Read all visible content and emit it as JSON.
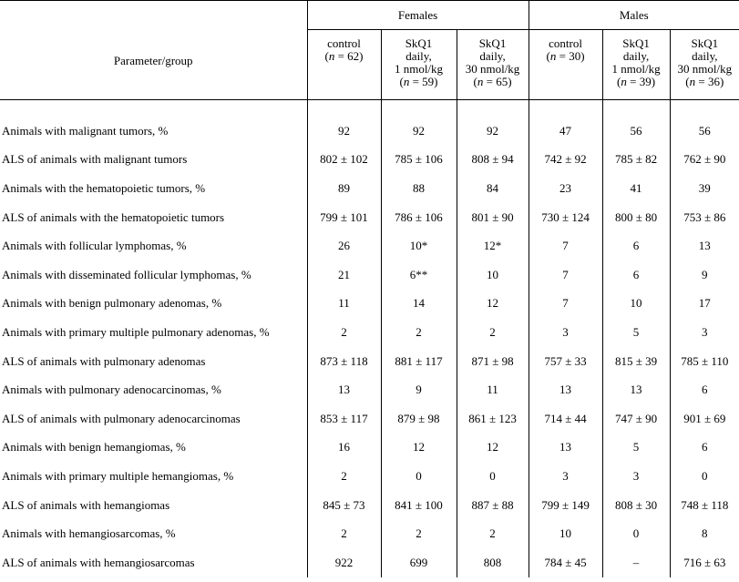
{
  "header": {
    "param_label": "Parameter/group",
    "groups": [
      "Females",
      "Males"
    ],
    "columns": [
      {
        "l1": "control",
        "l2": "",
        "l3": "",
        "n": "62"
      },
      {
        "l1": "SkQ1",
        "l2": "daily,",
        "l3": "1 nmol/kg",
        "n": "59"
      },
      {
        "l1": "SkQ1",
        "l2": "daily,",
        "l3": "30 nmol/kg",
        "n": "65"
      },
      {
        "l1": "control",
        "l2": "",
        "l3": "",
        "n": "30"
      },
      {
        "l1": "SkQ1",
        "l2": "daily,",
        "l3": "1 nmol/kg",
        "n": "39"
      },
      {
        "l1": "SkQ1",
        "l2": "daily,",
        "l3": "30 nmol/kg",
        "n": "36"
      }
    ]
  },
  "rows": [
    {
      "label": "Animals with malignant tumors, %",
      "values": [
        "92",
        "92",
        "92",
        "47",
        "56",
        "56"
      ]
    },
    {
      "label": "ALS of animals with malignant tumors",
      "values": [
        "802 ± 102",
        "785 ± 106",
        "808 ± 94",
        "742 ± 92",
        "785 ± 82",
        "762 ± 90"
      ]
    },
    {
      "label": "Animals with the hematopoietic tumors, %",
      "values": [
        "89",
        "88",
        "84",
        "23",
        "41",
        "39"
      ]
    },
    {
      "label": "ALS of animals with the hematopoietic tumors",
      "values": [
        "799 ± 101",
        "786 ± 106",
        "801 ± 90",
        "730 ± 124",
        "800 ± 80",
        "753 ± 86"
      ]
    },
    {
      "label": "Animals with follicular lymphomas, %",
      "values": [
        "26",
        "10*",
        "12*",
        "7",
        "6",
        "13"
      ]
    },
    {
      "label": "Animals with disseminated follicular lymphomas, %",
      "values": [
        "21",
        "6**",
        "10",
        "7",
        "6",
        "9"
      ]
    },
    {
      "label": "Animals with benign pulmonary adenomas, %",
      "values": [
        "11",
        "14",
        "12",
        "7",
        "10",
        "17"
      ]
    },
    {
      "label": "Animals with primary multiple pulmonary adenomas, %",
      "values": [
        "2",
        "2",
        "2",
        "3",
        "5",
        "3"
      ]
    },
    {
      "label": "ALS of animals with pulmonary adenomas",
      "values": [
        "873 ± 118",
        "881 ± 117",
        "871 ± 98",
        "757 ± 33",
        "815 ± 39",
        "785 ± 110"
      ]
    },
    {
      "label": "Animals with pulmonary adenocarcinomas, %",
      "values": [
        "13",
        "9",
        "11",
        "13",
        "13",
        "6"
      ]
    },
    {
      "label": "ALS of animals with pulmonary adenocarcinomas",
      "values": [
        "853 ± 117",
        "879 ± 98",
        "861 ± 123",
        "714 ± 44",
        "747 ± 90",
        "901 ± 69"
      ]
    },
    {
      "label": "Animals with benign hemangiomas, %",
      "values": [
        "16",
        "12",
        "12",
        "13",
        "5",
        "6"
      ]
    },
    {
      "label": "Animals with primary multiple hemangiomas, %",
      "values": [
        "2",
        "0",
        "0",
        "3",
        "3",
        "0"
      ]
    },
    {
      "label": "ALS of animals with hemangiomas",
      "values": [
        "845 ± 73",
        "841 ± 100",
        "887 ± 88",
        "799 ± 149",
        "808 ± 30",
        "748 ± 118"
      ]
    },
    {
      "label": "Animals with hemangiosarcomas, %",
      "values": [
        "2",
        "2",
        "2",
        "10",
        "0",
        "8"
      ]
    },
    {
      "label": "ALS of animals with hemangiosarcomas",
      "values": [
        "922",
        "699",
        "808",
        "784 ± 45",
        "–",
        "716 ± 63"
      ]
    }
  ]
}
